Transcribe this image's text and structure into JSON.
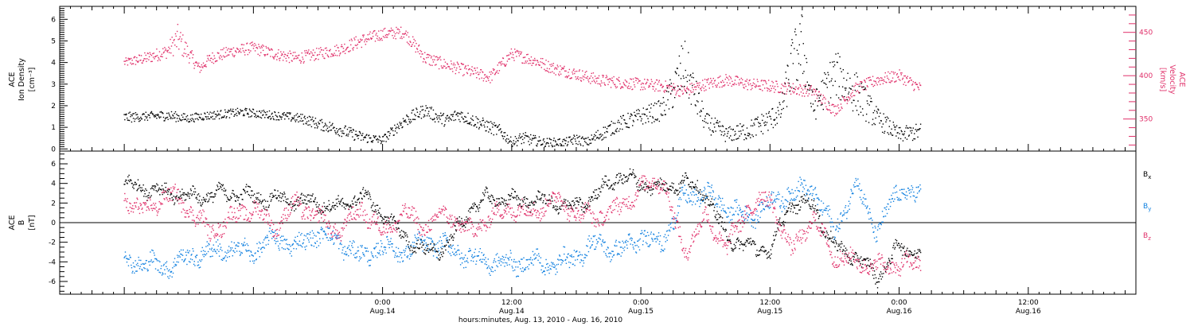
{
  "chart_data": [
    {
      "type": "scatter",
      "panel": "top",
      "left_axis": {
        "label_lines": [
          "ACE",
          "Ion Density",
          "[cm⁻³]"
        ],
        "ylim": [
          -0.1,
          6.6
        ],
        "ticks": [
          "0",
          "1",
          "2",
          "3",
          "4",
          "5",
          "6"
        ],
        "color": "#000000"
      },
      "right_axis": {
        "label_lines": [
          "ACE",
          "Velocity",
          "[km/s]"
        ],
        "ylim": [
          313,
          480
        ],
        "ticks": [
          "350",
          "400",
          "450"
        ],
        "color": "#e0306a"
      },
      "series": [
        {
          "name": "",
          "axis": "left",
          "color": "#000000",
          "x": [
            0,
            2,
            4,
            6,
            7,
            9,
            11,
            13,
            15,
            17,
            18,
            20,
            22,
            24,
            26,
            28,
            29,
            30,
            31,
            33,
            35,
            36,
            37,
            39,
            41,
            42,
            43,
            44,
            46,
            48,
            50,
            51,
            52,
            54,
            55,
            56,
            58,
            60,
            61,
            62,
            63,
            64,
            66,
            68,
            70,
            72,
            74
          ],
          "y": [
            1.4,
            1.5,
            1.6,
            1.4,
            1.5,
            1.6,
            1.7,
            1.6,
            1.5,
            1.4,
            1.2,
            0.9,
            0.5,
            0.4,
            1.3,
            1.8,
            1.5,
            1.3,
            1.6,
            1.2,
            0.8,
            0.3,
            0.5,
            0.3,
            0.3,
            0.4,
            0.3,
            0.6,
            1.1,
            1.5,
            1.8,
            2.7,
            3.8,
            1.2,
            0.9,
            0.6,
            0.8,
            1.3,
            1.6,
            3.8,
            5.0,
            1.8,
            3.5,
            2.6,
            1.4,
            0.6,
            0.8
          ],
          "range_y": [
            [
              1.2,
              1.7
            ],
            [
              1.3,
              1.7
            ],
            [
              1.3,
              1.8
            ],
            [
              1.2,
              1.6
            ],
            [
              1.3,
              1.7
            ],
            [
              1.4,
              1.8
            ],
            [
              1.5,
              1.9
            ],
            [
              1.4,
              1.8
            ],
            [
              1.3,
              1.7
            ],
            [
              1.1,
              1.6
            ],
            [
              0.9,
              1.4
            ],
            [
              0.6,
              1.2
            ],
            [
              0.3,
              0.8
            ],
            [
              0.2,
              0.6
            ],
            [
              1.0,
              1.6
            ],
            [
              1.5,
              2.1
            ],
            [
              1.2,
              1.8
            ],
            [
              1.0,
              1.6
            ],
            [
              1.3,
              1.9
            ],
            [
              0.9,
              1.5
            ],
            [
              0.5,
              1.1
            ],
            [
              0.1,
              0.5
            ],
            [
              0.2,
              0.8
            ],
            [
              0.1,
              0.5
            ],
            [
              0.1,
              0.5
            ],
            [
              0.2,
              0.7
            ],
            [
              0.1,
              0.5
            ],
            [
              0.3,
              0.9
            ],
            [
              0.8,
              1.5
            ],
            [
              1.1,
              1.9
            ],
            [
              1.3,
              2.3
            ],
            [
              1.8,
              3.6
            ],
            [
              2.5,
              5.2
            ],
            [
              0.8,
              1.7
            ],
            [
              0.5,
              1.4
            ],
            [
              0.3,
              1.0
            ],
            [
              0.4,
              1.3
            ],
            [
              0.8,
              1.9
            ],
            [
              1.2,
              2.2
            ],
            [
              2.4,
              5.2
            ],
            [
              3.2,
              6.4
            ],
            [
              1.2,
              2.5
            ],
            [
              2.4,
              4.6
            ],
            [
              1.6,
              3.6
            ],
            [
              0.9,
              1.9
            ],
            [
              0.3,
              1.0
            ],
            [
              0.4,
              1.2
            ]
          ]
        },
        {
          "name": "",
          "axis": "right",
          "color": "#e0306a",
          "x": [
            0,
            2,
            4,
            5,
            6,
            7,
            8,
            10,
            12,
            14,
            16,
            18,
            20,
            22,
            24,
            26,
            28,
            30,
            32,
            34,
            36,
            38,
            40,
            42,
            44,
            46,
            48,
            50,
            52,
            54,
            56,
            58,
            60,
            62,
            64,
            66,
            68,
            70,
            72,
            74
          ],
          "y": [
            415,
            420,
            428,
            440,
            425,
            408,
            420,
            428,
            432,
            425,
            420,
            425,
            430,
            440,
            448,
            450,
            420,
            412,
            405,
            398,
            425,
            418,
            408,
            402,
            395,
            392,
            390,
            388,
            382,
            390,
            395,
            390,
            388,
            385,
            382,
            360,
            385,
            395,
            400,
            385
          ],
          "range_y": [
            [
              410,
              420
            ],
            [
              413,
              427
            ],
            [
              420,
              436
            ],
            [
              425,
              460
            ],
            [
              415,
              435
            ],
            [
              402,
              414
            ],
            [
              413,
              427
            ],
            [
              421,
              435
            ],
            [
              425,
              439
            ],
            [
              418,
              432
            ],
            [
              413,
              427
            ],
            [
              418,
              432
            ],
            [
              423,
              437
            ],
            [
              432,
              448
            ],
            [
              441,
              455
            ],
            [
              443,
              457
            ],
            [
              412,
              428
            ],
            [
              405,
              419
            ],
            [
              398,
              412
            ],
            [
              391,
              405
            ],
            [
              418,
              432
            ],
            [
              411,
              425
            ],
            [
              401,
              415
            ],
            [
              395,
              409
            ],
            [
              388,
              402
            ],
            [
              385,
              399
            ],
            [
              383,
              397
            ],
            [
              381,
              395
            ],
            [
              375,
              389
            ],
            [
              383,
              397
            ],
            [
              388,
              402
            ],
            [
              383,
              397
            ],
            [
              381,
              395
            ],
            [
              378,
              392
            ],
            [
              375,
              389
            ],
            [
              353,
              367
            ],
            [
              378,
              392
            ],
            [
              388,
              402
            ],
            [
              393,
              407
            ],
            [
              378,
              392
            ]
          ]
        }
      ]
    },
    {
      "type": "scatter",
      "panel": "bottom",
      "left_axis": {
        "label_lines": [
          "ACE",
          "B",
          "[nT]"
        ],
        "ylim": [
          -7.3,
          7.3
        ],
        "ticks": [
          "-6",
          "-4",
          "-2",
          "0",
          "2",
          "4",
          "6"
        ],
        "color": "#000000"
      },
      "zero_line": true,
      "legend": {
        "placement": "right",
        "entries": [
          {
            "base": "B",
            "sub": "x",
            "color": "#000000"
          },
          {
            "base": "B",
            "sub": "y",
            "color": "#1080e0"
          },
          {
            "base": "B",
            "sub": "z",
            "color": "#e0306a"
          }
        ]
      },
      "series": [
        {
          "name": "Bx",
          "color": "#000000",
          "x": [
            0,
            2,
            4,
            6,
            8,
            10,
            12,
            14,
            16,
            18,
            20,
            22,
            24,
            26,
            28,
            30,
            32,
            34,
            36,
            38,
            40,
            42,
            44,
            46,
            48,
            50,
            52,
            54,
            56,
            58,
            60,
            62,
            64,
            66,
            68,
            70,
            72,
            74
          ],
          "y": [
            3.8,
            3.6,
            3.0,
            2.6,
            2.8,
            3.0,
            2.6,
            2.4,
            2.2,
            2.0,
            1.5,
            2.8,
            1.0,
            -1.5,
            -3.0,
            -2.5,
            1.2,
            2.6,
            2.2,
            2.3,
            2.0,
            1.5,
            3.0,
            4.8,
            4.0,
            3.5,
            4.2,
            3.0,
            -1.5,
            -2.5,
            -2.8,
            2.0,
            1.8,
            -2.5,
            -3.5,
            -5.5,
            -2.5,
            -3.0
          ],
          "spread": 1.1
        },
        {
          "name": "By",
          "color": "#1080e0",
          "x": [
            0,
            2,
            4,
            6,
            8,
            10,
            12,
            14,
            16,
            18,
            20,
            22,
            24,
            26,
            28,
            30,
            32,
            34,
            36,
            38,
            40,
            42,
            44,
            46,
            48,
            50,
            52,
            54,
            56,
            58,
            60,
            62,
            64,
            66,
            68,
            70,
            72,
            74
          ],
          "y": [
            -3.8,
            -4.2,
            -4.5,
            -3.5,
            -3.0,
            -2.8,
            -3.0,
            -1.5,
            -2.5,
            -1.0,
            -2.0,
            -3.5,
            -2.5,
            -3.0,
            -2.0,
            -2.5,
            -3.5,
            -4.0,
            -4.2,
            -4.0,
            -4.3,
            -3.5,
            -2.0,
            -3.0,
            -1.5,
            -2.0,
            2.5,
            3.0,
            1.5,
            0.5,
            2.0,
            3.0,
            3.5,
            -1.0,
            4.0,
            -1.0,
            3.5,
            2.5
          ],
          "spread": 1.6
        },
        {
          "name": "Bz",
          "color": "#e0306a",
          "x": [
            0,
            2,
            4,
            6,
            8,
            10,
            12,
            14,
            16,
            18,
            20,
            22,
            24,
            26,
            28,
            30,
            32,
            34,
            36,
            38,
            40,
            42,
            44,
            46,
            48,
            50,
            52,
            54,
            56,
            58,
            60,
            62,
            64,
            66,
            68,
            70,
            72,
            74
          ],
          "y": [
            2.5,
            1.0,
            3.0,
            1.5,
            -1.0,
            0.5,
            1.5,
            -0.5,
            2.0,
            0.5,
            -1.0,
            1.5,
            -1.0,
            1.0,
            -0.5,
            1.0,
            -1.0,
            0.5,
            1.5,
            1.0,
            2.5,
            1.0,
            0.5,
            1.5,
            3.5,
            4.5,
            -3.0,
            0.5,
            -2.5,
            1.5,
            2.5,
            -3.0,
            0.5,
            -3.5,
            -4.0,
            -4.5,
            -4.3,
            -4.3
          ],
          "spread": 1.5
        }
      ]
    }
  ],
  "x_axis": {
    "xlim": [
      -6,
      94
    ],
    "unit": "hours since 00:00 Aug. 13",
    "ticks": [
      {
        "x": 24,
        "time": "0:00",
        "date": "Aug.14"
      },
      {
        "x": 36,
        "time": "12:00",
        "date": "Aug.14"
      },
      {
        "x": 48,
        "time": "0:00",
        "date": "Aug.15"
      },
      {
        "x": 60,
        "time": "12:00",
        "date": "Aug.15"
      },
      {
        "x": 72,
        "time": "0:00",
        "date": "Aug.16"
      },
      {
        "x": 84,
        "time": "12:00",
        "date": "Aug.16"
      }
    ],
    "label": "hours:minutes, Aug. 13, 2010 - Aug. 16, 2010"
  }
}
